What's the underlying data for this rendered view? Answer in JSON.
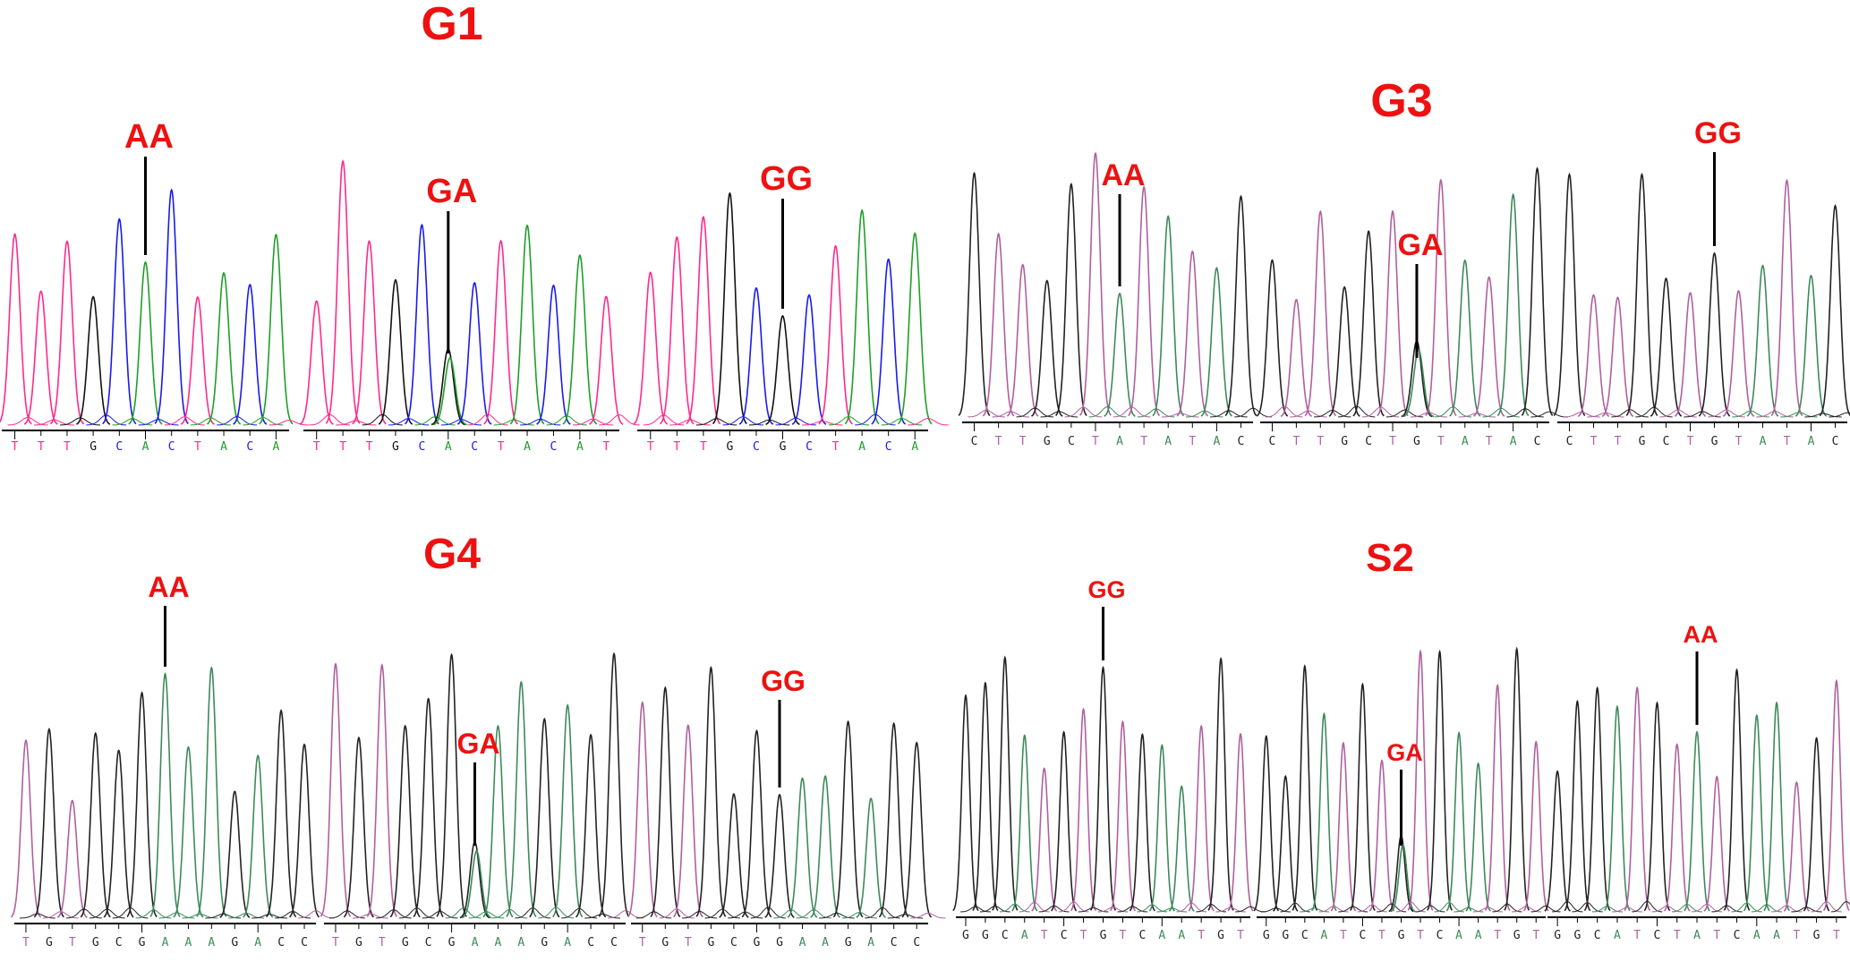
{
  "colors": {
    "annotation": "#ee1111",
    "scheme_bright": {
      "A": "#1f9e2a",
      "C": "#1a1aee",
      "G": "#111111",
      "T": "#ff2a8a"
    },
    "scheme_muted": {
      "A": "#3d8a5a",
      "C": "#222222",
      "G": "#222222",
      "T": "#b0609e"
    }
  },
  "panels": [
    {
      "title": "G1",
      "scheme": "scheme_bright",
      "subpanels": [
        {
          "sequence": "TTTGCACTACA",
          "genotype": "AA",
          "marked_index": 5
        },
        {
          "sequence": "TTTGCACTACAT",
          "genotype": "GA",
          "marked_index": 5
        },
        {
          "sequence": "TTTGCGCTACA",
          "genotype": "GG",
          "marked_index": 5
        }
      ]
    },
    {
      "title": "G3",
      "scheme": "scheme_muted",
      "subpanels": [
        {
          "sequence": "CTTGCTATATAC",
          "genotype": "AA",
          "marked_index": 6
        },
        {
          "sequence": "CTTGCTGTATAC",
          "genotype": "GA",
          "marked_index": 6
        },
        {
          "sequence": "CTTGCTGTATAC",
          "genotype": "GG",
          "marked_index": 6
        }
      ]
    },
    {
      "title": "G4",
      "scheme": "scheme_muted",
      "subpanels": [
        {
          "sequence": "TGTGCGAAAGACC",
          "genotype": "AA",
          "marked_index": 6
        },
        {
          "sequence": "TGTGCGAAAGACC",
          "genotype": "GA",
          "marked_index": 6
        },
        {
          "sequence": "TGTGCGGAAGACC",
          "genotype": "GG",
          "marked_index": 6
        }
      ]
    },
    {
      "title": "S2",
      "scheme": "scheme_muted",
      "subpanels": [
        {
          "sequence": "GGCATCTGTCAATGT",
          "genotype": "GG",
          "marked_index": 7
        },
        {
          "sequence": "GGCATCTGTCAATGT",
          "genotype": "GA",
          "marked_index": 7
        },
        {
          "sequence": "GGCATCTATCAATGT",
          "genotype": "AA",
          "marked_index": 7
        }
      ]
    }
  ]
}
